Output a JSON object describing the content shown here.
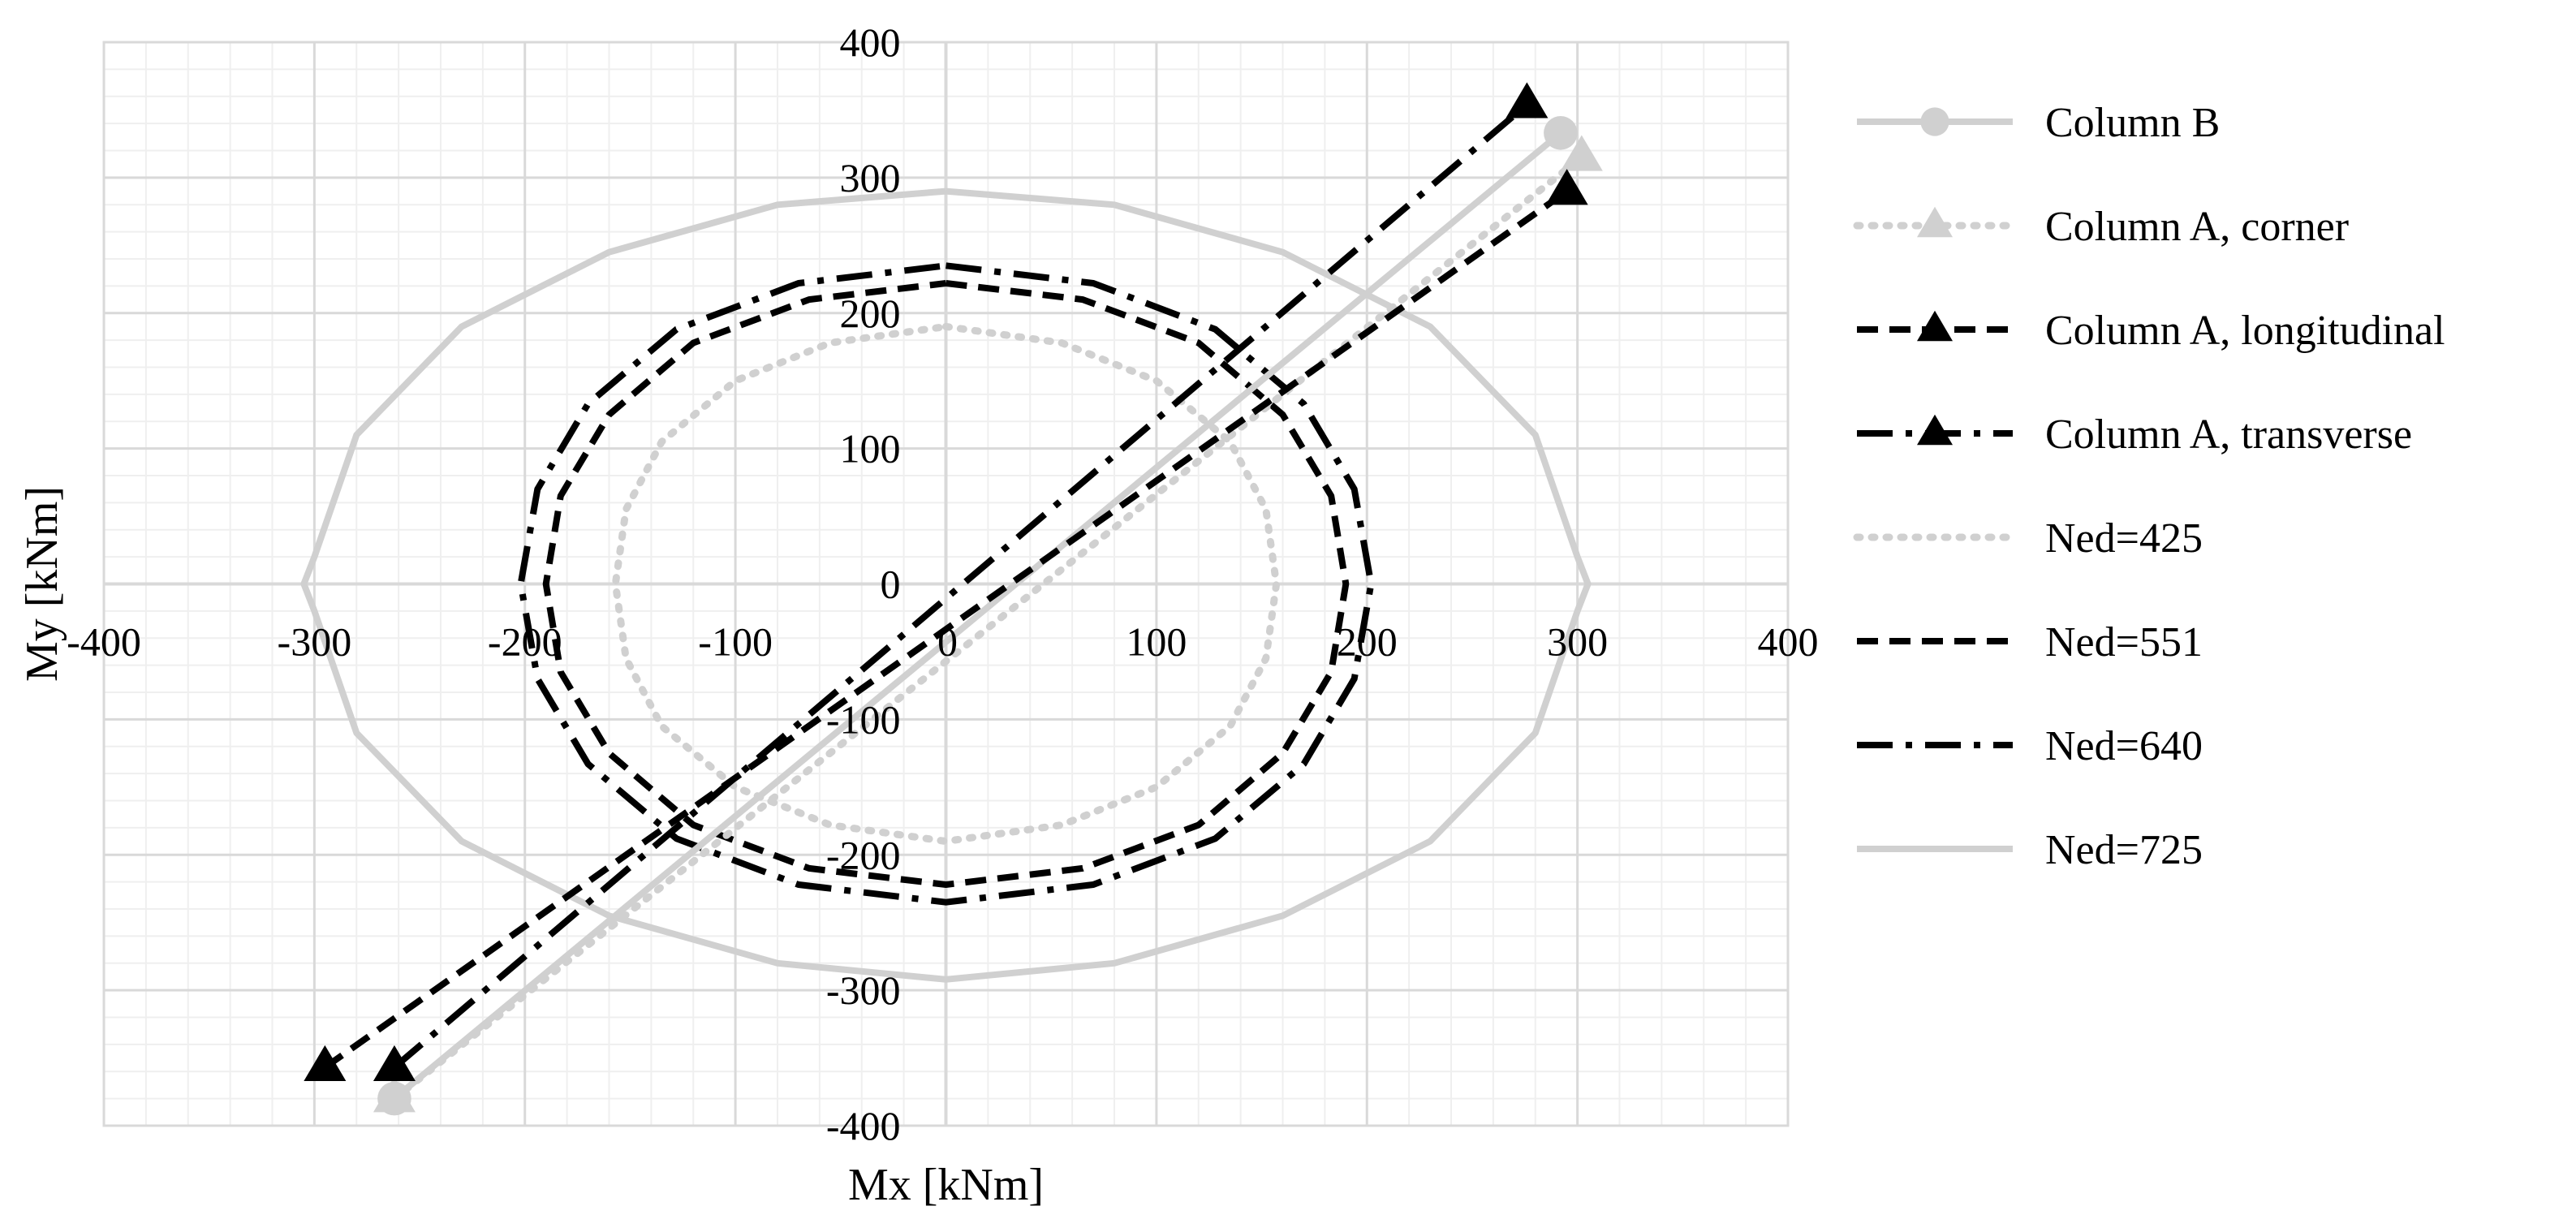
{
  "chart_data": {
    "type": "scatter",
    "title": "",
    "xlabel": "Mx [kNm]",
    "ylabel": "My  [kNm]",
    "xlim": [
      -400,
      400
    ],
    "ylim": [
      -400,
      400
    ],
    "x_ticks": [
      "-400",
      "-300",
      "-200",
      "-100",
      "0",
      "100",
      "200",
      "300",
      "400"
    ],
    "y_ticks": [
      "400",
      "300",
      "200",
      "100",
      "0",
      "-100",
      "-200",
      "-300",
      "-400"
    ],
    "grid": true,
    "legend_position": "right",
    "series": [
      {
        "name": "Column B",
        "kind": "load-path",
        "color": "#d0d0d0",
        "marker": "circle",
        "dash": "solid",
        "points": [
          [
            -262,
            -380
          ],
          [
            292,
            333
          ]
        ]
      },
      {
        "name": "Column A, corner",
        "kind": "load-path",
        "color": "#d0d0d0",
        "marker": "triangle",
        "dash": "dotted",
        "points": [
          [
            -262,
            -380
          ],
          [
            302,
            315
          ]
        ]
      },
      {
        "name": "Column A, longitudinal",
        "kind": "load-path",
        "color": "#000000",
        "marker": "triangle",
        "dash": "dashed",
        "points": [
          [
            -295,
            -357
          ],
          [
            295,
            290
          ]
        ]
      },
      {
        "name": "Column A, transverse",
        "kind": "load-path",
        "color": "#000000",
        "marker": "triangle",
        "dash": "dashdot",
        "points": [
          [
            -262,
            -357
          ],
          [
            276,
            354
          ]
        ]
      },
      {
        "name": "Ned=425",
        "kind": "interaction-curve",
        "color": "#d0d0d0",
        "dash": "dotted",
        "points": [
          [
            0,
            190
          ],
          [
            55,
            178
          ],
          [
            100,
            150
          ],
          [
            135,
            105
          ],
          [
            152,
            55
          ],
          [
            157,
            0
          ],
          [
            152,
            -55
          ],
          [
            135,
            -105
          ],
          [
            100,
            -150
          ],
          [
            55,
            -178
          ],
          [
            0,
            -190
          ],
          [
            -55,
            -178
          ],
          [
            -100,
            -150
          ],
          [
            -135,
            -105
          ],
          [
            -152,
            -55
          ],
          [
            -157,
            0
          ],
          [
            -152,
            55
          ],
          [
            -135,
            105
          ],
          [
            -100,
            150
          ],
          [
            -55,
            178
          ],
          [
            0,
            190
          ]
        ]
      },
      {
        "name": "Ned=551",
        "kind": "interaction-curve",
        "color": "#000000",
        "dash": "dashed",
        "points": [
          [
            0,
            222
          ],
          [
            65,
            210
          ],
          [
            120,
            178
          ],
          [
            160,
            125
          ],
          [
            183,
            65
          ],
          [
            190,
            0
          ],
          [
            183,
            -65
          ],
          [
            160,
            -125
          ],
          [
            120,
            -178
          ],
          [
            65,
            -210
          ],
          [
            0,
            -222
          ],
          [
            -65,
            -210
          ],
          [
            -120,
            -178
          ],
          [
            -160,
            -125
          ],
          [
            -183,
            -65
          ],
          [
            -190,
            0
          ],
          [
            -183,
            65
          ],
          [
            -160,
            125
          ],
          [
            -120,
            178
          ],
          [
            -65,
            210
          ],
          [
            0,
            222
          ]
        ]
      },
      {
        "name": "Ned=640",
        "kind": "interaction-curve",
        "color": "#000000",
        "dash": "dashdot",
        "points": [
          [
            0,
            235
          ],
          [
            70,
            222
          ],
          [
            128,
            188
          ],
          [
            170,
            133
          ],
          [
            194,
            70
          ],
          [
            202,
            0
          ],
          [
            194,
            -70
          ],
          [
            170,
            -133
          ],
          [
            128,
            -188
          ],
          [
            70,
            -222
          ],
          [
            0,
            -235
          ],
          [
            -70,
            -222
          ],
          [
            -128,
            -188
          ],
          [
            -170,
            -133
          ],
          [
            -194,
            -70
          ],
          [
            -202,
            0
          ],
          [
            -194,
            70
          ],
          [
            -170,
            133
          ],
          [
            -128,
            188
          ],
          [
            -70,
            222
          ],
          [
            0,
            235
          ]
        ]
      },
      {
        "name": "Ned=725",
        "kind": "interaction-curve",
        "color": "#d0d0d0",
        "dash": "solid",
        "points": [
          [
            0,
            290
          ],
          [
            80,
            280
          ],
          [
            160,
            245
          ],
          [
            230,
            190
          ],
          [
            280,
            110
          ],
          [
            300,
            20
          ],
          [
            305,
            0
          ],
          [
            300,
            -20
          ],
          [
            280,
            -110
          ],
          [
            230,
            -190
          ],
          [
            160,
            -245
          ],
          [
            80,
            -280
          ],
          [
            0,
            -292
          ],
          [
            -80,
            -280
          ],
          [
            -160,
            -245
          ],
          [
            -230,
            -190
          ],
          [
            -280,
            -110
          ],
          [
            -300,
            -20
          ],
          [
            -305,
            0
          ],
          [
            -300,
            20
          ],
          [
            -280,
            110
          ],
          [
            -230,
            190
          ],
          [
            -160,
            245
          ],
          [
            -80,
            280
          ],
          [
            0,
            290
          ]
        ]
      }
    ]
  }
}
